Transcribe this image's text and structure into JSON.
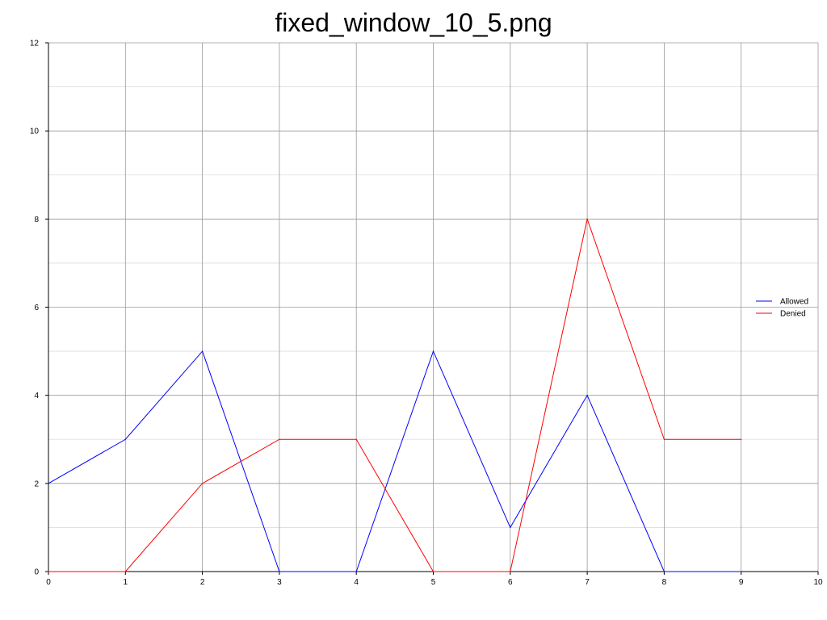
{
  "chart_data": {
    "type": "line",
    "title": "fixed_window_10_5.png",
    "xlabel": "",
    "ylabel": "",
    "xlim": [
      0,
      10
    ],
    "ylim": [
      0,
      12
    ],
    "x_ticks": [
      "0",
      "1",
      "2",
      "3",
      "4",
      "5",
      "6",
      "7",
      "8",
      "9",
      "10"
    ],
    "y_ticks": [
      "0",
      "2",
      "4",
      "6",
      "8",
      "10",
      "12"
    ],
    "grid": true,
    "legend_position": "right",
    "x": [
      0,
      1,
      2,
      3,
      4,
      5,
      6,
      7,
      8,
      9
    ],
    "series": [
      {
        "name": "Allowed",
        "color": "#0000ff",
        "values": [
          2,
          3,
          5,
          0,
          0,
          5,
          1,
          4,
          0,
          0
        ]
      },
      {
        "name": "Denied",
        "color": "#ff0000",
        "values": [
          0,
          0,
          2,
          3,
          3,
          0,
          0,
          8,
          3,
          3
        ]
      }
    ]
  }
}
